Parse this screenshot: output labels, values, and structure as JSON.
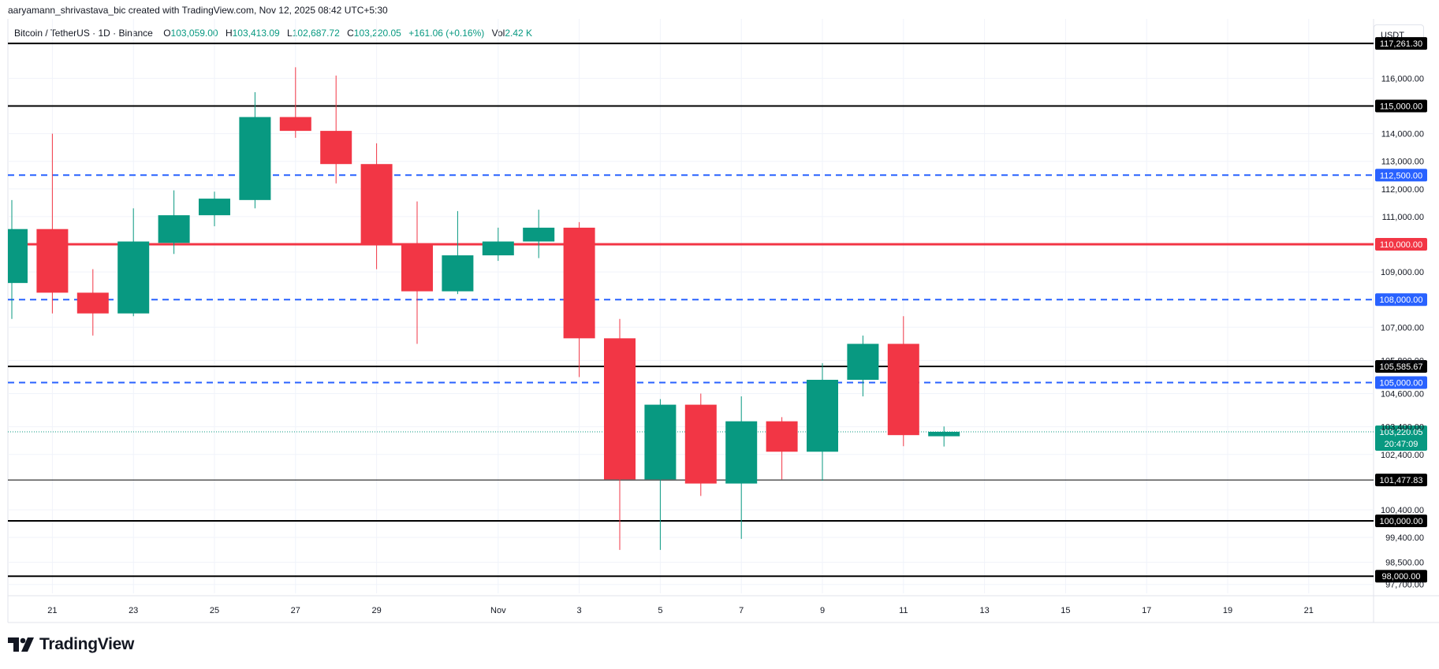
{
  "header": {
    "attribution": "aaryamann_shrivastava_bic created with TradingView.com, Nov 12, 2025 08:42 UTC+5:30",
    "symbol": "Bitcoin / TetherUS · 1D · Binance",
    "open_label": "O",
    "open": "103,059.00",
    "high_label": "H",
    "high": "103,413.09",
    "low_label": "L",
    "low": "102,687.72",
    "close_label": "C",
    "close": "103,220.05",
    "change": "+161.06 (+0.16%)",
    "vol_label": "Vol",
    "vol": "2.42 K"
  },
  "currency_button": "USDT",
  "brand": {
    "name": "TradingView",
    "logo_icon": "tradingview-logo-icon"
  },
  "colors": {
    "up": "#089981",
    "down": "#f23645",
    "blue_line": "#2962ff",
    "red_line": "#f23645",
    "black_line": "#000000",
    "grid": "#f0f3fa"
  },
  "chart_data": {
    "type": "candlestick",
    "title": "Bitcoin / TetherUS · 1D · Binance",
    "ylim": [
      97500,
      118500
    ],
    "y_ticks": [
      "116,000.00",
      "114,000.00",
      "113,000.00",
      "112,000.00",
      "111,000.00",
      "109,000.00",
      "107,000.00",
      "105,800.00",
      "104,600.00",
      "103,400.00",
      "102,400.00",
      "100,400.00",
      "99,400.00",
      "98,500.00",
      "97,700.00"
    ],
    "y_tick_values": [
      116000,
      114000,
      113000,
      112000,
      111000,
      109000,
      107000,
      105800,
      104600,
      103400,
      102400,
      100400,
      99400,
      98500,
      97700
    ],
    "x_ticks": [
      {
        "label": "21",
        "day": 1
      },
      {
        "label": "23",
        "day": 3
      },
      {
        "label": "25",
        "day": 5
      },
      {
        "label": "27",
        "day": 7
      },
      {
        "label": "29",
        "day": 9
      },
      {
        "label": "Nov",
        "day": 12
      },
      {
        "label": "3",
        "day": 14
      },
      {
        "label": "5",
        "day": 16
      },
      {
        "label": "7",
        "day": 18
      },
      {
        "label": "9",
        "day": 20
      },
      {
        "label": "11",
        "day": 22
      },
      {
        "label": "13",
        "day": 24
      },
      {
        "label": "15",
        "day": 26
      },
      {
        "label": "17",
        "day": 28
      },
      {
        "label": "19",
        "day": 30
      },
      {
        "label": "21",
        "day": 32
      }
    ],
    "candles": [
      {
        "date": "2025-10-20",
        "o": 108600,
        "h": 111600,
        "l": 107300,
        "c": 110550
      },
      {
        "date": "2025-10-21",
        "o": 110550,
        "h": 114000,
        "l": 107500,
        "c": 108250
      },
      {
        "date": "2025-10-22",
        "o": 108250,
        "h": 109100,
        "l": 106700,
        "c": 107500
      },
      {
        "date": "2025-10-23",
        "o": 107500,
        "h": 111300,
        "l": 107400,
        "c": 110100
      },
      {
        "date": "2025-10-24",
        "o": 110050,
        "h": 111950,
        "l": 109650,
        "c": 111050
      },
      {
        "date": "2025-10-25",
        "o": 111050,
        "h": 111900,
        "l": 110650,
        "c": 111650
      },
      {
        "date": "2025-10-26",
        "o": 111600,
        "h": 115500,
        "l": 111300,
        "c": 114600
      },
      {
        "date": "2025-10-27",
        "o": 114600,
        "h": 116400,
        "l": 113850,
        "c": 114100
      },
      {
        "date": "2025-10-28",
        "o": 114100,
        "h": 116100,
        "l": 112200,
        "c": 112900
      },
      {
        "date": "2025-10-29",
        "o": 112900,
        "h": 113650,
        "l": 109100,
        "c": 110000
      },
      {
        "date": "2025-10-30",
        "o": 110000,
        "h": 111550,
        "l": 106400,
        "c": 108300
      },
      {
        "date": "2025-10-31",
        "o": 108300,
        "h": 111200,
        "l": 108200,
        "c": 109600
      },
      {
        "date": "2025-11-01",
        "o": 109600,
        "h": 110600,
        "l": 109400,
        "c": 110100
      },
      {
        "date": "2025-11-02",
        "o": 110100,
        "h": 111250,
        "l": 109500,
        "c": 110600
      },
      {
        "date": "2025-11-03",
        "o": 110600,
        "h": 110800,
        "l": 105200,
        "c": 106600
      },
      {
        "date": "2025-11-04",
        "o": 106600,
        "h": 107300,
        "l": 98950,
        "c": 101500
      },
      {
        "date": "2025-11-05",
        "o": 101500,
        "h": 104400,
        "l": 98950,
        "c": 104200
      },
      {
        "date": "2025-11-06",
        "o": 104200,
        "h": 104600,
        "l": 100900,
        "c": 101350
      },
      {
        "date": "2025-11-07",
        "o": 101350,
        "h": 104500,
        "l": 99350,
        "c": 103600
      },
      {
        "date": "2025-11-08",
        "o": 103600,
        "h": 103750,
        "l": 101500,
        "c": 102500
      },
      {
        "date": "2025-11-09",
        "o": 102500,
        "h": 105700,
        "l": 101450,
        "c": 105100
      },
      {
        "date": "2025-11-10",
        "o": 105100,
        "h": 106700,
        "l": 104500,
        "c": 106400
      },
      {
        "date": "2025-11-11",
        "o": 106400,
        "h": 107400,
        "l": 102700,
        "c": 103100
      },
      {
        "date": "2025-11-12",
        "o": 103059,
        "h": 103413,
        "l": 102688,
        "c": 103220
      }
    ],
    "levels": [
      {
        "value": 117261.3,
        "label": "117,261.30",
        "style": "black",
        "width": 2
      },
      {
        "value": 115000.0,
        "label": "115,000.00",
        "style": "black",
        "width": 2
      },
      {
        "value": 112500.0,
        "label": "112,500.00",
        "style": "blue-dashed",
        "width": 2
      },
      {
        "value": 110000.0,
        "label": "110,000.00",
        "style": "red",
        "width": 3
      },
      {
        "value": 108000.0,
        "label": "108,000.00",
        "style": "blue-dashed",
        "width": 2
      },
      {
        "value": 105585.67,
        "label": "105,585.67",
        "style": "black",
        "width": 2
      },
      {
        "value": 105000.0,
        "label": "105,000.00",
        "style": "blue-dashed",
        "width": 2
      },
      {
        "value": 101477.83,
        "label": "101,477.83",
        "style": "black",
        "width": 1
      },
      {
        "value": 100000.0,
        "label": "100,000.00",
        "style": "black",
        "width": 2
      },
      {
        "value": 98000.0,
        "label": "98,000.00",
        "style": "black",
        "width": 2
      }
    ],
    "last_price": {
      "value": 103220.05,
      "label": "103,220.05",
      "countdown": "20:47:09"
    }
  }
}
